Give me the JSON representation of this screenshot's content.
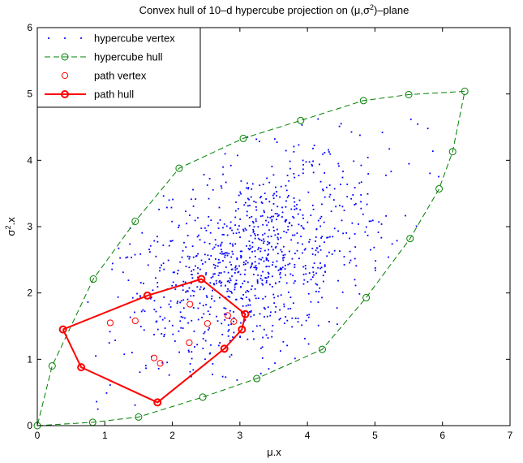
{
  "chart_data": {
    "type": "scatter",
    "title": "Convex hull of 10–d hypercube projection on (μ,σ²)–plane",
    "xlabel": "μ.x",
    "ylabel": "σ².x",
    "xlim": [
      0,
      7
    ],
    "ylim": [
      0,
      6
    ],
    "xticks": [
      0,
      1,
      2,
      3,
      4,
      5,
      6,
      7
    ],
    "yticks": [
      0,
      1,
      2,
      3,
      4,
      5,
      6
    ],
    "grid": false,
    "legend_position": "top-left",
    "colors": {
      "vertex": "#0000ff",
      "hull": "#008000",
      "path": "#ff0000"
    },
    "legend": [
      {
        "label": "hypercube vertex",
        "style": "dots",
        "color": "#0000ff"
      },
      {
        "label": "hypercube hull",
        "style": "dashed-circle",
        "color": "#008000"
      },
      {
        "label": "path vertex",
        "style": "circle",
        "color": "#ff0000"
      },
      {
        "label": "path hull",
        "style": "solid-circle",
        "color": "#ff0000"
      }
    ],
    "series": [
      {
        "name": "hypercube vertex",
        "marker": "dot",
        "count": 1024,
        "sample_points": [
          [
            0.8,
            0.3
          ],
          [
            1.5,
            1.2
          ],
          [
            2.0,
            1.6
          ],
          [
            2.5,
            2.0
          ],
          [
            3.0,
            2.5
          ],
          [
            3.5,
            3.0
          ],
          [
            4.0,
            3.4
          ],
          [
            4.5,
            3.8
          ],
          [
            5.0,
            4.2
          ],
          [
            3.2,
            1.8
          ],
          [
            2.8,
            3.0
          ],
          [
            4.2,
            2.6
          ],
          [
            3.8,
            4.0
          ],
          [
            1.8,
            2.3
          ],
          [
            4.8,
            3.0
          ]
        ]
      },
      {
        "name": "hypercube hull",
        "marker": "circle",
        "line": "dashed",
        "points": [
          [
            0,
            0
          ],
          [
            0.82,
            0.05
          ],
          [
            1.5,
            0.13
          ],
          [
            2.45,
            0.43
          ],
          [
            3.25,
            0.71
          ],
          [
            4.22,
            1.15
          ],
          [
            4.87,
            1.93
          ],
          [
            5.52,
            2.82
          ],
          [
            5.95,
            3.57
          ],
          [
            6.15,
            4.13
          ],
          [
            6.33,
            5.04
          ],
          [
            5.5,
            4.99
          ],
          [
            4.83,
            4.9
          ],
          [
            3.9,
            4.6
          ],
          [
            3.05,
            4.33
          ],
          [
            2.1,
            3.88
          ],
          [
            1.45,
            3.08
          ],
          [
            0.83,
            2.21
          ],
          [
            0.22,
            0.9
          ],
          [
            0,
            0
          ]
        ]
      },
      {
        "name": "path vertex",
        "marker": "circle",
        "points": [
          [
            0.38,
            1.45
          ],
          [
            1.08,
            1.55
          ],
          [
            1.63,
            1.96
          ],
          [
            1.45,
            1.58
          ],
          [
            2.43,
            2.21
          ],
          [
            2.26,
            1.83
          ],
          [
            2.52,
            1.54
          ],
          [
            2.82,
            1.66
          ],
          [
            2.91,
            1.57
          ],
          [
            3.08,
            1.68
          ],
          [
            3.03,
            1.45
          ],
          [
            2.77,
            1.16
          ],
          [
            2.25,
            1.25
          ],
          [
            1.82,
            0.94
          ],
          [
            1.73,
            1.02
          ],
          [
            1.78,
            0.35
          ],
          [
            0.65,
            0.88
          ]
        ]
      },
      {
        "name": "path hull",
        "marker": "circle",
        "line": "solid",
        "points": [
          [
            0.38,
            1.45
          ],
          [
            1.63,
            1.96
          ],
          [
            2.43,
            2.21
          ],
          [
            3.08,
            1.68
          ],
          [
            3.03,
            1.45
          ],
          [
            2.77,
            1.16
          ],
          [
            1.78,
            0.35
          ],
          [
            0.65,
            0.88
          ],
          [
            0.38,
            1.45
          ]
        ]
      }
    ]
  }
}
